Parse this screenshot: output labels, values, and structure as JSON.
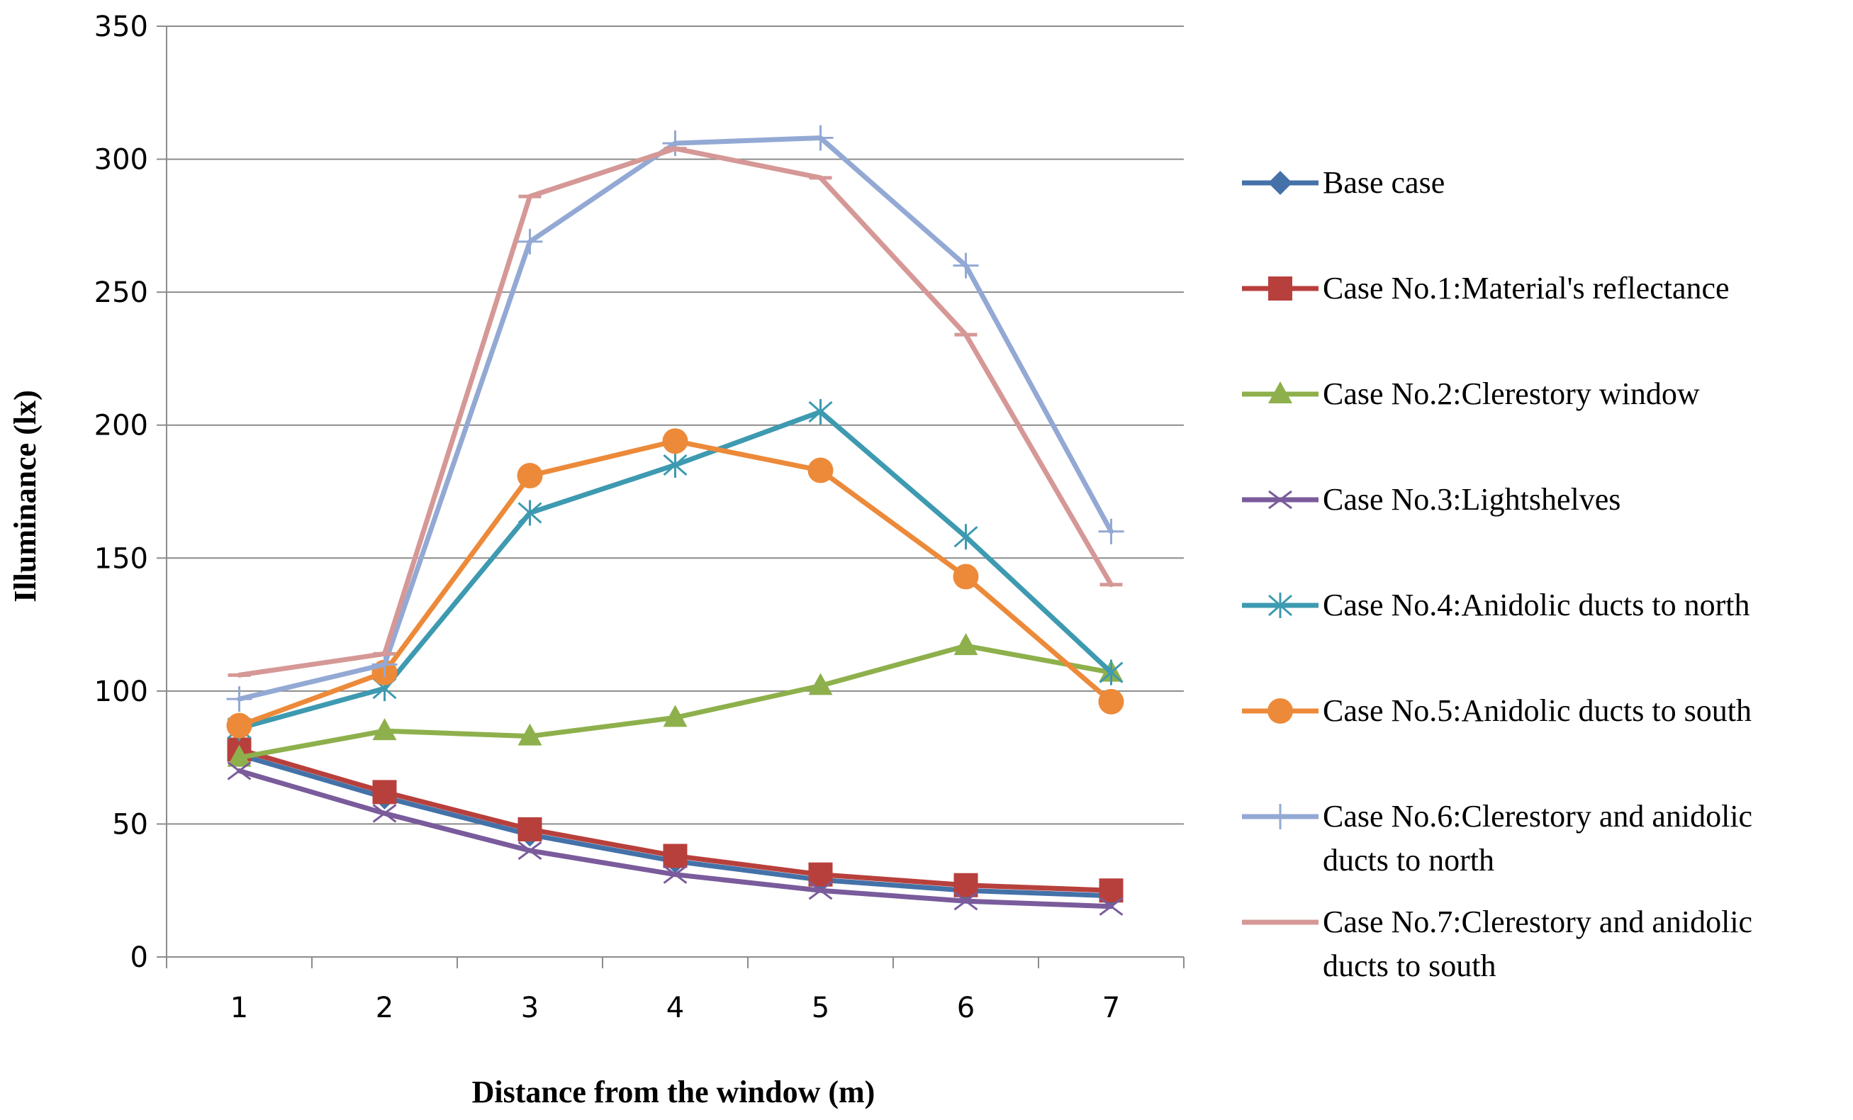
{
  "chart_data": {
    "type": "line",
    "xlabel": "Distance from the window (m)",
    "ylabel": "Illuminance (lx)",
    "categories": [
      "1",
      "2",
      "3",
      "4",
      "5",
      "6",
      "7"
    ],
    "ylim": [
      0,
      350
    ],
    "yticks": [
      0,
      50,
      100,
      150,
      200,
      250,
      300,
      350
    ],
    "grid": "horizontal",
    "legend_position": "right",
    "series": [
      {
        "name": "Base case",
        "values": [
          76,
          60,
          46,
          36,
          29,
          25,
          23
        ],
        "color": "#4472A8",
        "marker": "diamond",
        "legend_lines": [
          "Base case"
        ]
      },
      {
        "name": "Case No.1:Material's reflectance",
        "values": [
          78,
          62,
          48,
          38,
          31,
          27,
          25
        ],
        "color": "#B8403C",
        "marker": "square",
        "legend_lines": [
          "Case No.1:Material's reflectance"
        ]
      },
      {
        "name": "Case No.2:Clerestory window",
        "values": [
          75,
          85,
          83,
          90,
          102,
          117,
          107
        ],
        "color": "#8EB04C",
        "marker": "triangle",
        "legend_lines": [
          "Case No.2:Clerestory window"
        ]
      },
      {
        "name": "Case No.3:Lightshelves",
        "values": [
          70,
          54,
          40,
          31,
          25,
          21,
          19
        ],
        "color": "#7A5B9B",
        "marker": "x",
        "legend_lines": [
          "Case No.3:Lightshelves"
        ]
      },
      {
        "name": "Case No.4:Anidolic ducts to north",
        "values": [
          86,
          101,
          167,
          185,
          205,
          158,
          107
        ],
        "color": "#3D9AB0",
        "marker": "asterisk",
        "legend_lines": [
          "Case No.4:Anidolic ducts to north"
        ]
      },
      {
        "name": "Case No.5:Anidolic ducts to south",
        "values": [
          87,
          107,
          181,
          194,
          183,
          143,
          96
        ],
        "color": "#EC8A3A",
        "marker": "circle",
        "legend_lines": [
          "Case No.5:Anidolic ducts to south"
        ]
      },
      {
        "name": "Case No.6:Clerestory and anidolic ducts to north",
        "values": [
          97,
          110,
          269,
          306,
          308,
          260,
          160
        ],
        "color": "#93A9D4",
        "marker": "plus",
        "legend_lines": [
          "Case No.6:Clerestory and anidolic",
          "ducts to north"
        ]
      },
      {
        "name": "Case No.7:Clerestory and anidolic ducts to south",
        "values": [
          106,
          114,
          286,
          304,
          293,
          234,
          140
        ],
        "color": "#D59896",
        "marker": "dash",
        "legend_lines": [
          "Case No.7:Clerestory and anidolic",
          "ducts to south"
        ]
      }
    ]
  }
}
